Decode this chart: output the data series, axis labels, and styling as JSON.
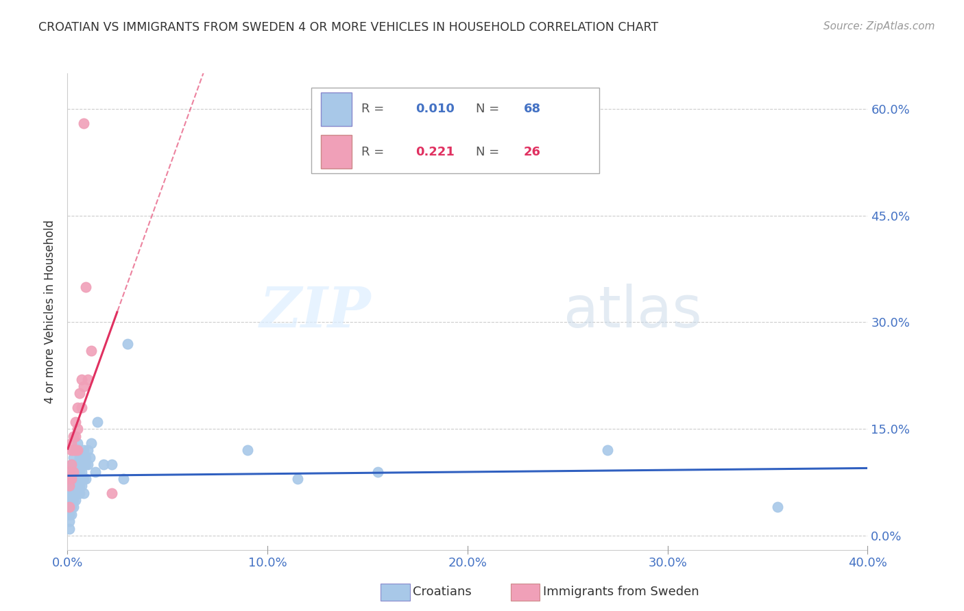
{
  "title": "CROATIAN VS IMMIGRANTS FROM SWEDEN 4 OR MORE VEHICLES IN HOUSEHOLD CORRELATION CHART",
  "source": "Source: ZipAtlas.com",
  "ylabel": "4 or more Vehicles in Household",
  "xlim": [
    0.0,
    0.4
  ],
  "ylim": [
    -0.02,
    0.65
  ],
  "yticks": [
    0.0,
    0.15,
    0.3,
    0.45,
    0.6
  ],
  "ytick_labels": [
    "0.0%",
    "15.0%",
    "30.0%",
    "45.0%",
    "60.0%"
  ],
  "xticks": [
    0.0,
    0.1,
    0.2,
    0.3,
    0.4
  ],
  "xtick_labels": [
    "0.0%",
    "10.0%",
    "20.0%",
    "30.0%",
    "40.0%"
  ],
  "legend_labels": [
    "Croatians",
    "Immigrants from Sweden"
  ],
  "legend_R": [
    "0.010",
    "0.221"
  ],
  "legend_N": [
    "68",
    "26"
  ],
  "color_croatian": "#a8c8e8",
  "color_swedish": "#f0a0b8",
  "trendline_croatian_color": "#3060c0",
  "trendline_swedish_color": "#e03060",
  "tick_label_color": "#4472c4",
  "watermark_zip": "ZIP",
  "watermark_atlas": "atlas",
  "background_color": "#ffffff",
  "croatian_x": [
    0.001,
    0.001,
    0.001,
    0.001,
    0.001,
    0.001,
    0.001,
    0.001,
    0.001,
    0.002,
    0.002,
    0.002,
    0.002,
    0.002,
    0.002,
    0.002,
    0.002,
    0.003,
    0.003,
    0.003,
    0.003,
    0.003,
    0.003,
    0.004,
    0.004,
    0.004,
    0.004,
    0.004,
    0.004,
    0.005,
    0.005,
    0.005,
    0.005,
    0.005,
    0.005,
    0.006,
    0.006,
    0.006,
    0.006,
    0.006,
    0.006,
    0.007,
    0.007,
    0.007,
    0.007,
    0.008,
    0.008,
    0.008,
    0.008,
    0.008,
    0.009,
    0.009,
    0.009,
    0.01,
    0.01,
    0.011,
    0.012,
    0.014,
    0.015,
    0.018,
    0.022,
    0.028,
    0.03,
    0.09,
    0.115,
    0.155,
    0.27,
    0.355
  ],
  "croatian_y": [
    0.07,
    0.06,
    0.05,
    0.05,
    0.04,
    0.03,
    0.03,
    0.02,
    0.01,
    0.1,
    0.09,
    0.08,
    0.07,
    0.06,
    0.05,
    0.04,
    0.03,
    0.11,
    0.1,
    0.08,
    0.07,
    0.05,
    0.04,
    0.12,
    0.1,
    0.09,
    0.08,
    0.07,
    0.05,
    0.13,
    0.12,
    0.1,
    0.09,
    0.08,
    0.06,
    0.11,
    0.1,
    0.09,
    0.08,
    0.07,
    0.06,
    0.11,
    0.1,
    0.09,
    0.07,
    0.12,
    0.11,
    0.1,
    0.08,
    0.06,
    0.11,
    0.1,
    0.08,
    0.12,
    0.1,
    0.11,
    0.13,
    0.09,
    0.16,
    0.1,
    0.1,
    0.08,
    0.27,
    0.12,
    0.08,
    0.09,
    0.12,
    0.04
  ],
  "swedish_x": [
    0.001,
    0.001,
    0.001,
    0.001,
    0.002,
    0.002,
    0.002,
    0.002,
    0.003,
    0.003,
    0.003,
    0.004,
    0.004,
    0.004,
    0.005,
    0.005,
    0.005,
    0.006,
    0.007,
    0.007,
    0.008,
    0.008,
    0.009,
    0.01,
    0.012,
    0.022
  ],
  "swedish_y": [
    0.09,
    0.08,
    0.07,
    0.04,
    0.13,
    0.12,
    0.1,
    0.08,
    0.14,
    0.12,
    0.09,
    0.16,
    0.14,
    0.12,
    0.18,
    0.15,
    0.12,
    0.2,
    0.22,
    0.18,
    0.58,
    0.21,
    0.35,
    0.22,
    0.26,
    0.06
  ]
}
